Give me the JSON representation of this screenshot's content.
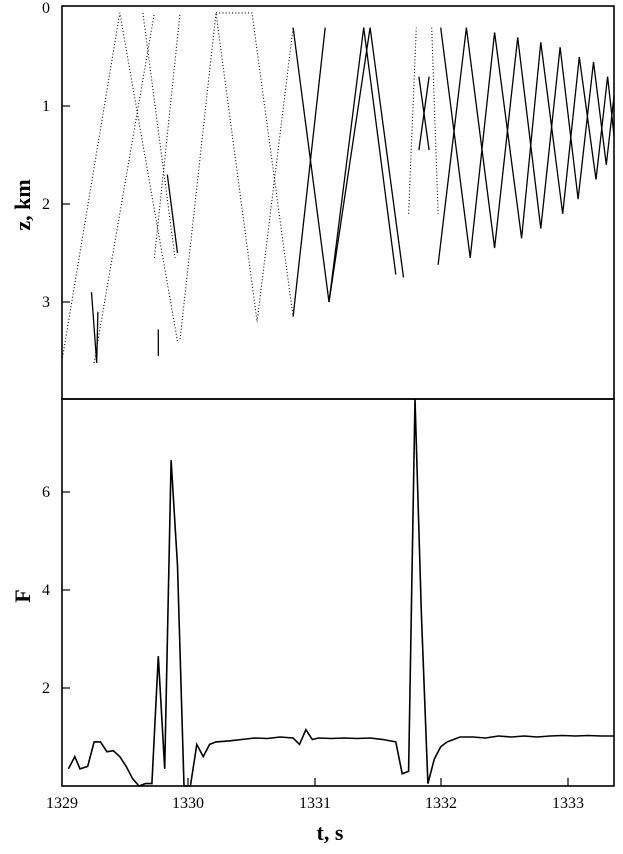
{
  "chart_data": [
    {
      "type": "line",
      "title": "",
      "xlabel": "",
      "ylabel": "z, km",
      "xlim": [
        1329,
        1333.3
      ],
      "ylim": [
        0,
        4
      ],
      "y_inverted": true,
      "y_ticks": [
        "0",
        "1",
        "2",
        "3"
      ],
      "series": [
        {
          "style": "dotted",
          "points": [
            [
              1329,
              3.6
            ],
            [
              1329.45,
              0.05
            ],
            [
              1329.9,
              3.4
            ]
          ]
        },
        {
          "style": "dotted",
          "points": [
            [
              1329.63,
              0.05
            ],
            [
              1329.88,
              2.55
            ]
          ]
        },
        {
          "style": "dotted",
          "points": [
            [
              1329.25,
              3.62
            ],
            [
              1329.72,
              0.05
            ]
          ]
        },
        {
          "style": "dotted",
          "points": [
            [
              1329.72,
              2.55
            ],
            [
              1329.92,
              0.05
            ]
          ]
        },
        {
          "style": "dotted",
          "points": [
            [
              1329.92,
              3.38
            ],
            [
              1330.2,
              0.05
            ],
            [
              1330.52,
              3.2
            ]
          ]
        },
        {
          "style": "dotted",
          "points": [
            [
              1330.2,
              0.05
            ],
            [
              1330.48,
              0.05
            ],
            [
              1330.8,
              3.15
            ]
          ]
        },
        {
          "style": "dotted",
          "points": [
            [
              1330.52,
              3.2
            ],
            [
              1330.8,
              0.2
            ]
          ]
        },
        {
          "style": "solid",
          "points": [
            [
              1329.23,
              2.9
            ],
            [
              1329.27,
              3.62
            ],
            [
              1329.28,
              3.1
            ]
          ]
        },
        {
          "style": "solid",
          "points": [
            [
              1329.75,
              3.28
            ],
            [
              1329.75,
              3.55
            ]
          ]
        },
        {
          "style": "solid",
          "points": [
            [
              1329.82,
              1.7
            ],
            [
              1329.9,
              2.5
            ]
          ]
        },
        {
          "style": "solid",
          "points": [
            [
              1330.8,
              0.2
            ],
            [
              1331.08,
              3.0
            ],
            [
              1331.4,
              0.2
            ],
            [
              1331.66,
              2.75
            ]
          ]
        },
        {
          "style": "solid",
          "points": [
            [
              1331.08,
              3.0
            ],
            [
              1331.35,
              0.2
            ]
          ]
        },
        {
          "style": "solid",
          "points": [
            [
              1330.8,
              3.15
            ],
            [
              1331.05,
              0.2
            ]
          ]
        },
        {
          "style": "solid",
          "points": [
            [
              1331.35,
              0.2
            ],
            [
              1331.6,
              2.72
            ]
          ]
        },
        {
          "style": "dotted",
          "points": [
            [
              1331.7,
              2.1
            ],
            [
              1331.76,
              0.2
            ]
          ]
        },
        {
          "style": "dotted",
          "points": [
            [
              1331.88,
              0.2
            ],
            [
              1331.93,
              2.1
            ]
          ]
        },
        {
          "style": "solid",
          "points": [
            [
              1331.78,
              0.7
            ],
            [
              1331.86,
              1.45
            ]
          ]
        },
        {
          "style": "solid",
          "points": [
            [
              1331.86,
              0.7
            ],
            [
              1331.78,
              1.45
            ]
          ]
        },
        {
          "style": "solid",
          "points": [
            [
              1331.93,
              2.62
            ],
            [
              1332.15,
              0.2
            ],
            [
              1332.37,
              2.45
            ],
            [
              1332.55,
              0.3
            ],
            [
              1332.73,
              2.25
            ],
            [
              1332.88,
              0.4
            ],
            [
              1333.02,
              1.95
            ],
            [
              1333.14,
              0.55
            ],
            [
              1333.24,
              1.6
            ],
            [
              1333.3,
              0.9
            ]
          ]
        },
        {
          "style": "solid",
          "points": [
            [
              1331.95,
              0.2
            ],
            [
              1332.18,
              2.55
            ],
            [
              1332.37,
              0.25
            ],
            [
              1332.58,
              2.35
            ],
            [
              1332.73,
              0.35
            ],
            [
              1332.9,
              2.1
            ],
            [
              1333.03,
              0.5
            ],
            [
              1333.16,
              1.75
            ],
            [
              1333.25,
              0.7
            ],
            [
              1333.3,
              1.3
            ]
          ]
        }
      ]
    },
    {
      "type": "line",
      "title": "",
      "xlabel": "t, s",
      "ylabel": "F",
      "xlim": [
        1329,
        1333.3
      ],
      "ylim": [
        0,
        7.9
      ],
      "x_ticks": [
        "1329",
        "1330",
        "1331",
        "1332",
        "1333"
      ],
      "y_ticks": [
        "2",
        "4",
        "6"
      ],
      "series": [
        {
          "x": [
            1329.05,
            1329.1,
            1329.14,
            1329.2,
            1329.25,
            1329.3,
            1329.35,
            1329.4,
            1329.45,
            1329.5,
            1329.55,
            1329.6,
            1329.65,
            1329.7,
            1329.75,
            1329.8,
            1329.85,
            1329.9,
            1329.95,
            1330.0,
            1330.05,
            1330.1,
            1330.15,
            1330.2,
            1330.3,
            1330.4,
            1330.5,
            1330.6,
            1330.7,
            1330.8,
            1330.85,
            1330.9,
            1330.95,
            1331.0,
            1331.1,
            1331.2,
            1331.3,
            1331.4,
            1331.5,
            1331.6,
            1331.65,
            1331.7,
            1331.75,
            1331.8,
            1331.85,
            1331.9,
            1331.95,
            1332.0,
            1332.05,
            1332.1,
            1332.2,
            1332.3,
            1332.4,
            1332.5,
            1332.6,
            1332.7,
            1332.8,
            1332.9,
            1333.0,
            1333.1,
            1333.2,
            1333.3
          ],
          "y": [
            0.35,
            0.6,
            0.35,
            0.4,
            0.9,
            0.9,
            0.7,
            0.72,
            0.6,
            0.4,
            0.15,
            0.0,
            0.05,
            0.05,
            2.65,
            0.35,
            6.65,
            4.5,
            0.0,
            0.0,
            0.85,
            0.6,
            0.85,
            0.9,
            0.92,
            0.95,
            0.98,
            0.97,
            1.0,
            0.98,
            0.85,
            1.15,
            0.95,
            0.98,
            0.97,
            0.98,
            0.97,
            0.98,
            0.95,
            0.9,
            0.25,
            0.3,
            7.9,
            3.5,
            0.05,
            0.55,
            0.8,
            0.9,
            0.95,
            1.0,
            1.0,
            0.98,
            1.02,
            1.0,
            1.02,
            1.0,
            1.02,
            1.03,
            1.02,
            1.03,
            1.02,
            1.02
          ]
        }
      ]
    }
  ]
}
